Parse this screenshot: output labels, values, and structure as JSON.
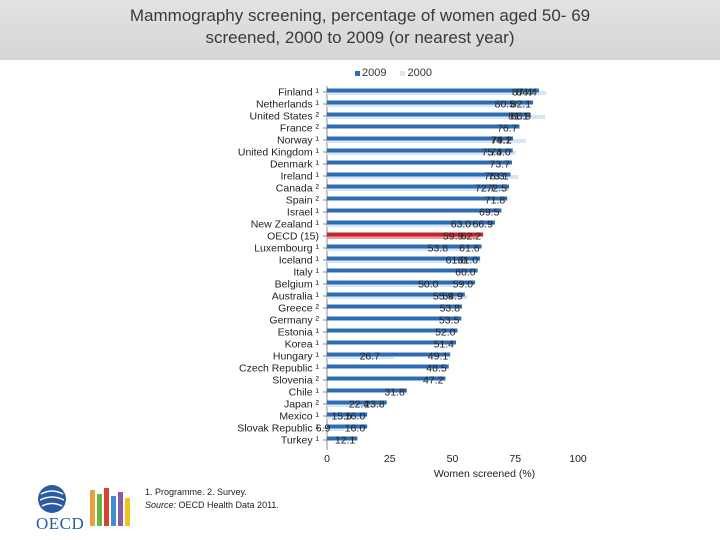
{
  "header": {
    "title_line1": "Mammography screening, percentage of women aged 50- 69",
    "title_line2": "screened, 2000 to 2009 (or nearest year)"
  },
  "colors": {
    "s2009": "#2d6cb5",
    "s2000": "#d6e6f4",
    "oecd_highlight": "#c3262b",
    "title_band": "#dcdcdc"
  },
  "footnote": {
    "line1": "1. Programme. 2. Survey.",
    "source_label": "Source:",
    "source_text": " OECD Health Data 2011."
  },
  "logo": {
    "text": "OECD"
  },
  "chart_data": {
    "type": "bar",
    "orientation": "horizontal",
    "title": "Mammography screening, percentage of women aged 50- 69 screened, 2000 to 2009 (or nearest year)",
    "xlabel": "Women screened (%)",
    "ylabel": "",
    "xlim": [
      0,
      100
    ],
    "xticks": [
      "0",
      "25",
      "50",
      "75",
      "100"
    ],
    "legend": [
      "2009",
      "2000"
    ],
    "categories": [
      "Finland ¹",
      "Netherlands ¹",
      "United States ²",
      "France ²",
      "Norway ¹",
      "United Kingdom ¹",
      "Denmark ¹",
      "Ireland ¹",
      "Canada ²",
      "Spain ²",
      "Israel ¹",
      "New Zealand ¹",
      "OECD (15)",
      "Luxembourg ¹",
      "Iceland ¹",
      "Italy ¹",
      "Belgium ¹",
      "Australia ¹",
      "Greece ²",
      "Germany ²",
      "Estonia ¹",
      "Korea ¹",
      "Hungary ¹",
      "Czech Republic ¹",
      "Slovenia ²",
      "Chile ¹",
      "Japan ²",
      "Mexico ¹",
      "Slovak Republic ¹",
      "Turkey ¹"
    ],
    "highlight_index": 12,
    "series": [
      {
        "name": "2009",
        "values": [
          84.4,
          82.1,
          81.1,
          76.7,
          74.1,
          74.0,
          73.7,
          73.1,
          72.5,
          71.8,
          69.5,
          66.9,
          62.2,
          61.6,
          61.0,
          60.0,
          59.0,
          54.9,
          53.8,
          53.5,
          52.0,
          51.4,
          49.1,
          48.5,
          47.2,
          31.8,
          23.8,
          16.0,
          16.0,
          12.1
        ],
        "labels": [
          "84.4",
          "82.1",
          "81.1",
          "76.7",
          "74.1",
          "74.0",
          "73.7",
          "73.1",
          "72.5",
          "71.8",
          "69.5",
          "66.9",
          "62.2",
          "61.6",
          "61.0",
          "60.0",
          "59.0",
          "54.9",
          "53.8",
          "53.5",
          "52.0",
          "51.4",
          "49.1",
          "48.5",
          "47.2",
          "31.8",
          "23.8",
          "16.0",
          "16.0",
          "12.1"
        ]
      },
      {
        "name": "2000",
        "values": [
          87.4,
          80.5,
          86.9,
          null,
          79.2,
          75.3,
          null,
          76.3,
          72.7,
          null,
          null,
          63.0,
          59.9,
          53.8,
          61.0,
          null,
          50.0,
          55.9,
          null,
          null,
          null,
          null,
          26.7,
          null,
          null,
          null,
          22.4,
          15.5,
          6.9,
          null
        ],
        "labels": [
          "87.4",
          "80.5",
          "86.9",
          null,
          "79.2",
          "75.3",
          null,
          "76.3",
          "72.7",
          null,
          null,
          "63.0",
          "59.9",
          "53.8",
          "61.0",
          null,
          "50.0",
          "55.9",
          null,
          null,
          null,
          null,
          "26.7",
          null,
          null,
          null,
          "22.4",
          "15.5",
          "6.9",
          null
        ]
      }
    ]
  }
}
